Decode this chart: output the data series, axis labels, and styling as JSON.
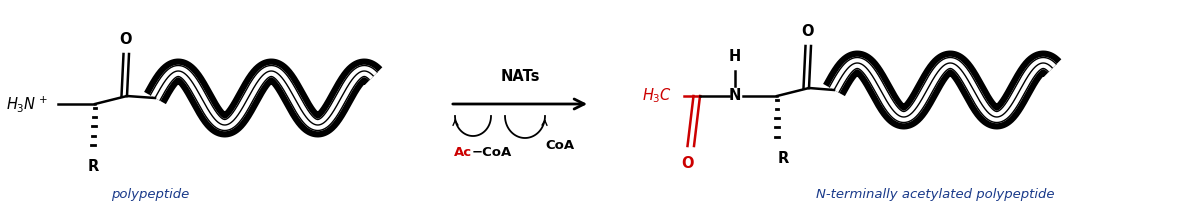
{
  "bg_color": "#ffffff",
  "black": "#000000",
  "red": "#cc0000",
  "dark_navy": "#1a3a8a",
  "label_left": "polypeptide",
  "label_right": "N-terminally acetylated polypeptide",
  "arrow_label": "NATs",
  "fig_width": 12.0,
  "fig_height": 2.09,
  "dpi": 100
}
